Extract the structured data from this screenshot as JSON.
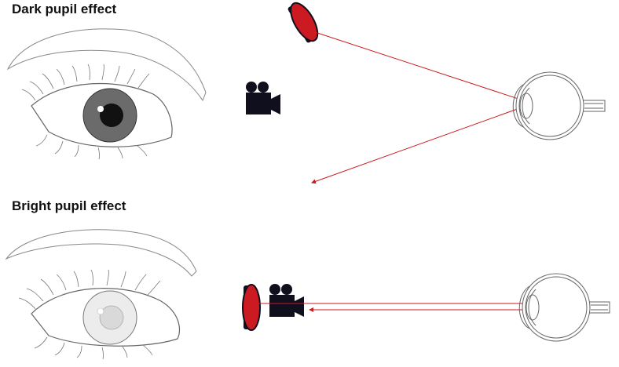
{
  "titles": {
    "dark": "Dark pupil effect",
    "bright": "Bright pupil effect"
  },
  "colors": {
    "ray": "#cc1a22",
    "lamp": "#cc1a22",
    "camera": "#0f0f1e",
    "outline": "#555555",
    "iris_dark": "#6b6b6b",
    "pupil_dark": "#111111",
    "pupil_bright": "#d9d9d9"
  },
  "icons": [
    "lamp-icon",
    "camera-icon",
    "eye-front-icon",
    "eye-cross-section-icon"
  ]
}
